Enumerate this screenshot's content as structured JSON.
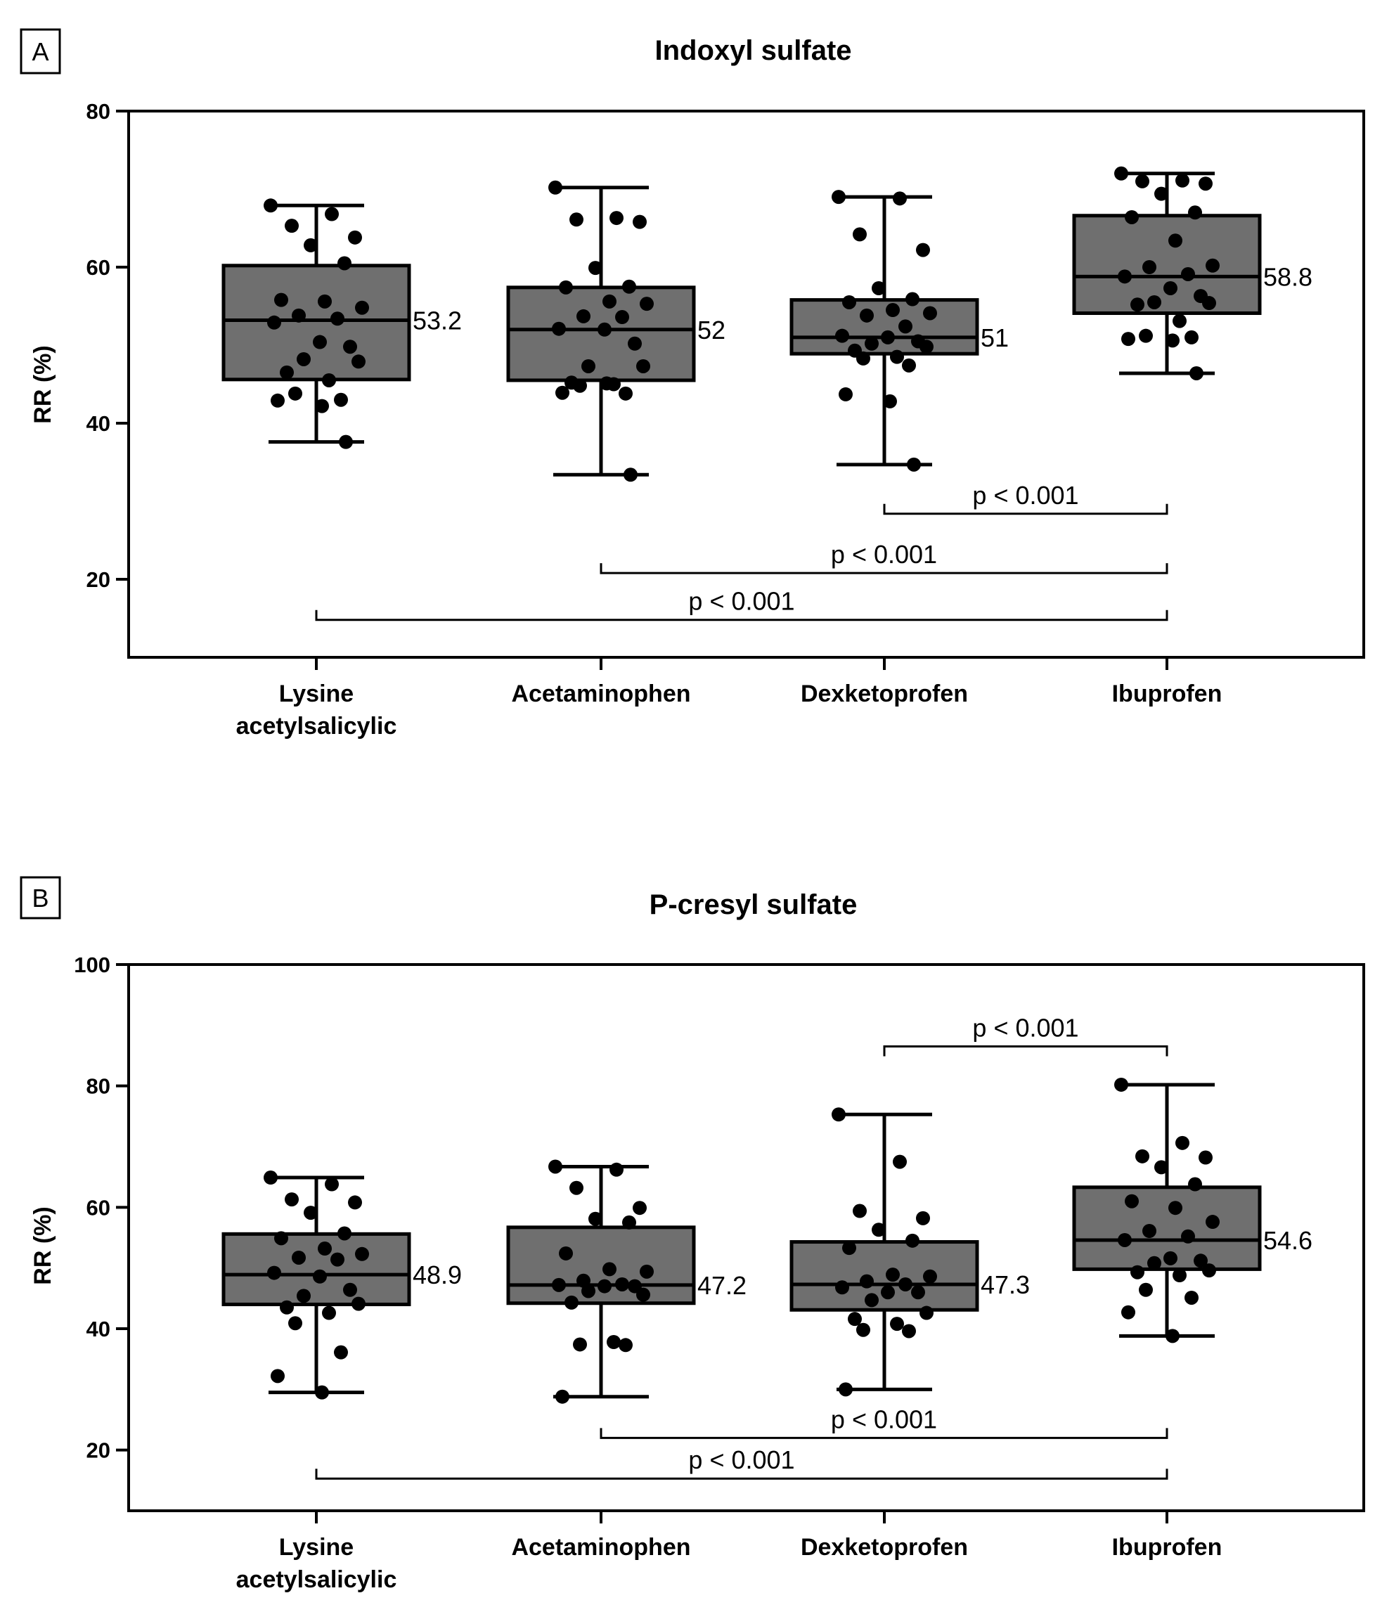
{
  "chart_data": [
    {
      "type": "boxplot",
      "panel": "A",
      "title": "Indoxyl sulfate",
      "ylabel": "RR (%)",
      "xlabel": "",
      "ylim": [
        10,
        80
      ],
      "yticks": [
        20,
        40,
        60,
        80
      ],
      "categories": [
        {
          "line1": "Lysine",
          "line2": "acetylsalicylic"
        },
        {
          "line1": "Acetaminophen",
          "line2": ""
        },
        {
          "line1": "Dexketoprofen",
          "line2": ""
        },
        {
          "line1": "Ibuprofen",
          "line2": ""
        }
      ],
      "boxes": [
        {
          "min": 37.6,
          "q1": 45.6,
          "median": 53.2,
          "q3": 60.2,
          "max": 67.9,
          "median_label": "53.2",
          "points": [
            67.9,
            66.8,
            65.3,
            63.8,
            62.8,
            60.5,
            55.8,
            55.6,
            54.8,
            53.8,
            53.4,
            52.9,
            50.4,
            49.8,
            48.2,
            47.9,
            46.5,
            45.5,
            43.8,
            43.0,
            42.9,
            42.2,
            37.6
          ]
        },
        {
          "min": 33.4,
          "q1": 45.5,
          "median": 52.0,
          "q3": 57.4,
          "max": 70.2,
          "median_label": "52",
          "points": [
            70.2,
            66.3,
            66.1,
            65.8,
            59.9,
            57.5,
            57.4,
            55.6,
            55.3,
            53.7,
            53.6,
            52.1,
            52.0,
            50.2,
            47.3,
            47.3,
            45.2,
            45.0,
            44.8,
            43.8,
            43.9,
            45.1,
            33.4
          ]
        },
        {
          "min": 34.7,
          "q1": 48.9,
          "median": 51.0,
          "q3": 55.8,
          "max": 69.0,
          "median_label": "51",
          "points": [
            69.0,
            68.8,
            64.2,
            62.2,
            57.3,
            55.9,
            55.5,
            54.5,
            54.1,
            53.8,
            52.4,
            51.2,
            51.0,
            50.5,
            50.2,
            49.8,
            49.3,
            48.5,
            48.3,
            47.4,
            43.7,
            42.8,
            34.7
          ]
        },
        {
          "min": 46.4,
          "q1": 54.1,
          "median": 58.8,
          "q3": 66.6,
          "max": 72.0,
          "median_label": "58.8",
          "points": [
            72.0,
            71.1,
            71.0,
            70.7,
            69.4,
            67.0,
            66.4,
            63.4,
            60.2,
            60.0,
            59.1,
            58.8,
            57.3,
            56.3,
            55.5,
            55.4,
            55.2,
            53.1,
            51.2,
            51.0,
            50.8,
            50.6,
            46.4
          ]
        }
      ],
      "comparisons": [
        {
          "from": "Dexketoprofen",
          "to": "Ibuprofen",
          "label": "p < 0.001",
          "y": 28.4
        },
        {
          "from": "Acetaminophen",
          "to": "Ibuprofen",
          "label": "p < 0.001",
          "y": 20.8
        },
        {
          "from": "Lysine acetylsalicylic",
          "to": "Ibuprofen",
          "label": "p < 0.001",
          "y": 14.8
        }
      ]
    },
    {
      "type": "boxplot",
      "panel": "B",
      "title": "P-cresyl sulfate",
      "ylabel": "RR (%)",
      "xlabel": "",
      "ylim": [
        10,
        100
      ],
      "yticks": [
        20,
        40,
        60,
        80,
        100
      ],
      "categories": [
        {
          "line1": "Lysine",
          "line2": "acetylsalicylic"
        },
        {
          "line1": "Acetaminophen",
          "line2": ""
        },
        {
          "line1": "Dexketoprofen",
          "line2": ""
        },
        {
          "line1": "Ibuprofen",
          "line2": ""
        }
      ],
      "boxes": [
        {
          "min": 29.5,
          "q1": 44.0,
          "median": 48.9,
          "q3": 55.6,
          "max": 64.9,
          "median_label": "48.9",
          "points": [
            64.9,
            63.8,
            61.3,
            60.8,
            59.1,
            55.7,
            54.9,
            53.2,
            52.3,
            51.7,
            51.4,
            49.2,
            48.6,
            46.4,
            45.4,
            44.1,
            43.5,
            42.6,
            40.9,
            36.1,
            32.2,
            29.5
          ]
        },
        {
          "min": 28.8,
          "q1": 44.2,
          "median": 47.2,
          "q3": 56.7,
          "max": 66.7,
          "median_label": "47.2",
          "points": [
            66.7,
            66.2,
            63.2,
            59.9,
            58.1,
            57.5,
            52.4,
            49.8,
            49.4,
            47.9,
            47.3,
            47.2,
            47.0,
            47.0,
            46.2,
            45.6,
            44.3,
            37.8,
            37.4,
            37.3,
            28.8
          ]
        },
        {
          "min": 30.0,
          "q1": 43.1,
          "median": 47.3,
          "q3": 54.3,
          "max": 75.3,
          "median_label": "47.3",
          "points": [
            75.3,
            67.5,
            59.4,
            58.2,
            56.3,
            54.5,
            53.3,
            48.9,
            48.6,
            47.8,
            47.3,
            46.8,
            46.0,
            46.0,
            44.7,
            42.6,
            41.6,
            40.8,
            39.8,
            39.6,
            30.0
          ]
        },
        {
          "min": 38.8,
          "q1": 49.8,
          "median": 54.6,
          "q3": 63.3,
          "max": 80.2,
          "median_label": "54.6",
          "points": [
            80.2,
            70.6,
            68.4,
            68.2,
            66.6,
            63.8,
            61.0,
            59.9,
            57.6,
            56.1,
            55.2,
            54.6,
            51.6,
            51.2,
            50.8,
            49.6,
            49.3,
            48.8,
            46.4,
            45.1,
            42.7,
            38.8
          ]
        }
      ],
      "comparisons": [
        {
          "from": "Dexketoprofen",
          "to": "Ibuprofen",
          "label": "p < 0.001",
          "y": 86.5
        },
        {
          "from": "Acetaminophen",
          "to": "Ibuprofen",
          "label": "p < 0.001",
          "y": 22.0
        },
        {
          "from": "Lysine acetylsalicylic",
          "to": "Ibuprofen",
          "label": "p < 0.001",
          "y": 15.3
        }
      ]
    }
  ]
}
